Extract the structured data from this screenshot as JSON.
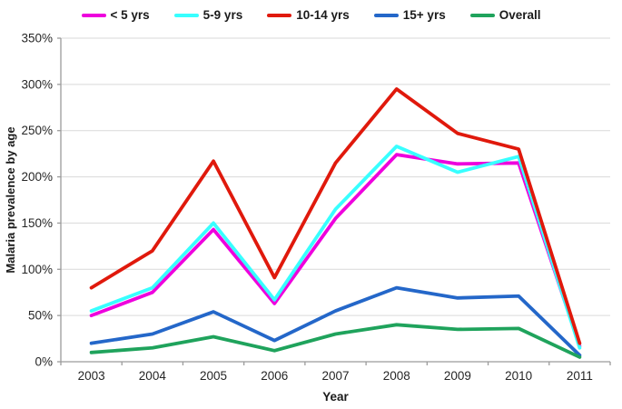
{
  "chart_data": {
    "type": "line",
    "title": "",
    "xlabel": "Year",
    "ylabel": "Malaria prevalence by age",
    "categories": [
      "2003",
      "2004",
      "2005",
      "2006",
      "2007",
      "2008",
      "2009",
      "2010",
      "2011"
    ],
    "series": [
      {
        "name": "< 5 yrs",
        "color": "#ee00dd",
        "values": [
          50,
          75,
          143,
          63,
          155,
          224,
          214,
          215,
          17
        ]
      },
      {
        "name": "5-9 yrs",
        "color": "#38ffff",
        "values": [
          55,
          80,
          150,
          67,
          165,
          233,
          205,
          222,
          15
        ]
      },
      {
        "name": "10-14 yrs",
        "color": "#e0190c",
        "values": [
          80,
          120,
          217,
          91,
          215,
          295,
          247,
          230,
          20
        ]
      },
      {
        "name": "15+ yrs",
        "color": "#2467c9",
        "values": [
          20,
          30,
          54,
          23,
          55,
          80,
          69,
          71,
          7
        ]
      },
      {
        "name": "Overall",
        "color": "#1fa35c",
        "values": [
          10,
          15,
          27,
          12,
          30,
          40,
          35,
          36,
          5
        ]
      }
    ],
    "ylim": [
      0,
      350
    ],
    "ytick_step": 50,
    "yticks": [
      "0%",
      "50%",
      "100%",
      "150%",
      "200%",
      "250%",
      "300%",
      "350%"
    ],
    "grid": "horizontal",
    "legend_position": "top"
  },
  "style": {
    "grid_color": "#d9d9d9",
    "axis_color": "#9b9b9b",
    "tick_label_color": "#262626",
    "line_width": 3.8
  }
}
